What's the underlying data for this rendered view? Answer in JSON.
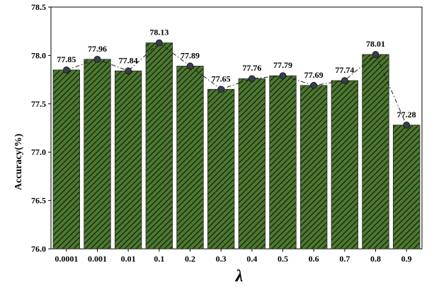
{
  "chart_data": {
    "type": "bar",
    "categories": [
      "0.0001",
      "0.001",
      "0.01",
      "0.1",
      "0.2",
      "0.3",
      "0.4",
      "0.5",
      "0.6",
      "0.7",
      "0.8",
      "0.9"
    ],
    "values": [
      77.85,
      77.96,
      77.84,
      78.13,
      77.89,
      77.65,
      77.76,
      77.79,
      77.69,
      77.74,
      78.01,
      77.28
    ],
    "value_labels": [
      "77.85",
      "77.96",
      "77.84",
      "78.13",
      "77.89",
      "77.65",
      "77.76",
      "77.79",
      "77.69",
      "77.74",
      "78.01",
      "77.28"
    ],
    "title": "",
    "xlabel": "λ",
    "ylabel": "Accuracy(%)",
    "ylim": [
      76.0,
      78.5
    ],
    "yticks": [
      76.0,
      76.5,
      77.0,
      77.5,
      78.0,
      78.5
    ],
    "ytick_labels": [
      "76.0",
      "76.5",
      "77.0",
      "77.5",
      "78.0",
      "78.5"
    ],
    "grid": false,
    "bar_style": "hatched",
    "overlay_line": "dash-dot with circle markers",
    "colors": {
      "bar_fill": "#4a7a2c",
      "hatch": "#1a1a1a",
      "bar_edge": "#2b2b2b",
      "line": "#222222",
      "marker": "#3a3f4e"
    }
  }
}
